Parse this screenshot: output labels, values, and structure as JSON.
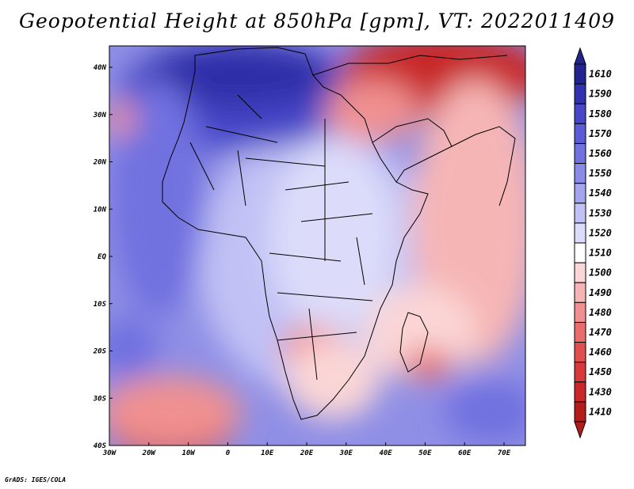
{
  "title": "Geopotential Height at 850hPa [gpm], VT: 2022011409",
  "footer": "GrADS: IGES/COLA",
  "map": {
    "lat_labels": [
      "40N",
      "30N",
      "20N",
      "10N",
      "EQ",
      "10S",
      "20S",
      "30S",
      "40S"
    ],
    "lon_labels": [
      "30W",
      "20W",
      "10W",
      "0",
      "10E",
      "20E",
      "30E",
      "40E",
      "50E",
      "60E",
      "70E"
    ]
  },
  "colorbar": {
    "levels": [
      "1610",
      "1590",
      "1580",
      "1570",
      "1560",
      "1550",
      "1540",
      "1530",
      "1520",
      "1510",
      "1500",
      "1490",
      "1480",
      "1470",
      "1460",
      "1450",
      "1430",
      "1410"
    ],
    "colors": [
      "#23238f",
      "#3232b0",
      "#4747c8",
      "#5c5cd6",
      "#7171e0",
      "#8a8ae8",
      "#a5a5ef",
      "#c1c1f5",
      "#dcdcfa",
      "#ffffff",
      "#fbd6d6",
      "#f6b5b5",
      "#f09090",
      "#e96d6d",
      "#e04f4f",
      "#d63a3a",
      "#c82828",
      "#b41c1c"
    ]
  }
}
